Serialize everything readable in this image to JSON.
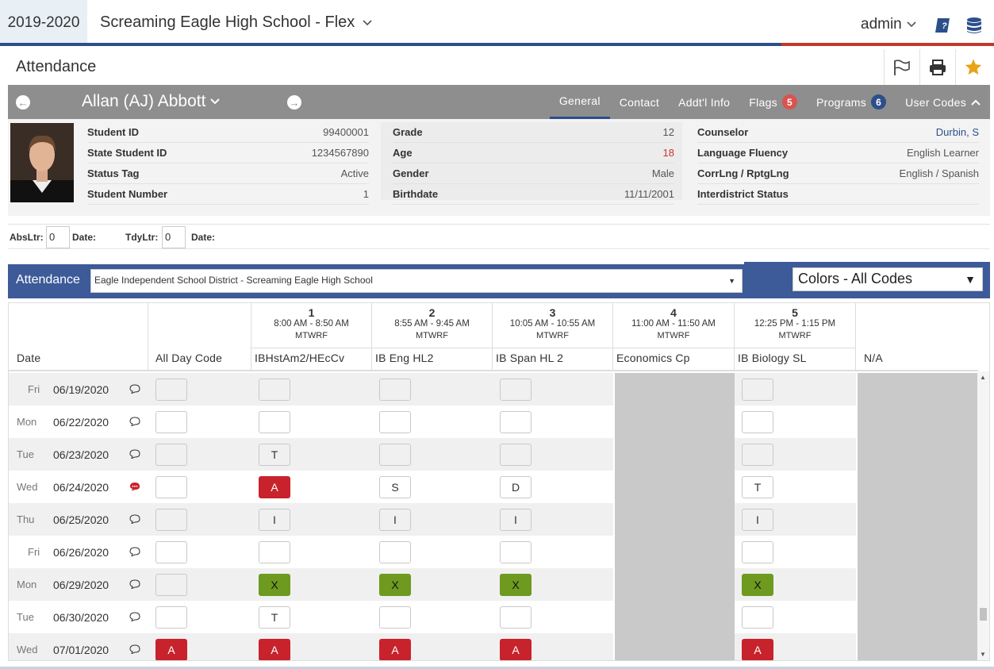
{
  "topbar": {
    "year": "2019-2020",
    "school": "Screaming Eagle High School - Flex",
    "user": "admin",
    "icons": [
      "help-book-icon",
      "database-icon"
    ]
  },
  "page": {
    "title": "Attendance",
    "actions": [
      "flag-icon",
      "print-icon",
      "star-icon"
    ]
  },
  "student": {
    "name": "Allan (AJ) Abbott",
    "tabs": [
      {
        "label": "General",
        "active": true
      },
      {
        "label": "Contact"
      },
      {
        "label": "Addt'l Info"
      },
      {
        "label": "Flags",
        "badge": "5",
        "badge_color": "#d9534f"
      },
      {
        "label": "Programs",
        "badge": "6",
        "badge_color": "#2c4f8c"
      },
      {
        "label": "User Codes"
      }
    ],
    "col1": [
      {
        "k": "Student ID",
        "v": "99400001"
      },
      {
        "k": "State Student ID",
        "v": "1234567890"
      },
      {
        "k": "Status Tag",
        "v": "Active"
      },
      {
        "k": "Student Number",
        "v": "1"
      }
    ],
    "col2": [
      {
        "k": "Grade",
        "v": "12"
      },
      {
        "k": "Age",
        "v": "18"
      },
      {
        "k": "Gender",
        "v": "Male"
      },
      {
        "k": "Birthdate",
        "v": "11/11/2001"
      }
    ],
    "col3": [
      {
        "k": "Counselor",
        "v": "Durbin, S"
      },
      {
        "k": "Language Fluency",
        "v": "English Learner"
      },
      {
        "k": "CorrLng / RptgLng",
        "v": "English / Spanish"
      },
      {
        "k": "Interdistrict Status",
        "v": ""
      }
    ]
  },
  "letters": {
    "abs_label": "AbsLtr:",
    "abs_value": "0",
    "date1_label": "Date:",
    "tdy_label": "TdyLtr:",
    "tdy_value": "0",
    "date2_label": "Date:"
  },
  "attendance": {
    "label": "Attendance",
    "school_select": "Eagle Independent School District - Screaming Eagle High School",
    "colors_select": "Colors - All Codes"
  },
  "grid": {
    "date_header": "Date",
    "allday_header": "All Day Code",
    "periods": [
      {
        "num": "1",
        "time": "8:00 AM - 8:50 AM",
        "days": "MTWRF",
        "course": "IBHstAm2/HEcCv"
      },
      {
        "num": "2",
        "time": "8:55 AM - 9:45 AM",
        "days": "MTWRF",
        "course": "IB Eng HL2"
      },
      {
        "num": "3",
        "time": "10:05 AM - 10:55 AM",
        "days": "MTWRF",
        "course": "IB Span HL 2"
      },
      {
        "num": "4",
        "time": "11:00 AM - 11:50 AM",
        "days": "MTWRF",
        "course": "Economics Cp"
      },
      {
        "num": "5",
        "time": "12:25 PM - 1:15 PM",
        "days": "MTWRF",
        "course": "IB Biology SL"
      },
      {
        "num": "",
        "time": "",
        "days": "",
        "course": "N/A"
      }
    ],
    "rows": [
      {
        "dow": "Fri",
        "date": "06/19/2020",
        "comment": false,
        "allday": "",
        "codes": [
          "",
          "",
          "",
          null,
          "",
          null
        ]
      },
      {
        "dow": "Mon",
        "date": "06/22/2020",
        "comment": false,
        "allday": "",
        "codes": [
          "",
          "",
          "",
          null,
          "",
          null
        ]
      },
      {
        "dow": "Tue",
        "date": "06/23/2020",
        "comment": false,
        "allday": "",
        "codes": [
          "T",
          "",
          "",
          null,
          "",
          null
        ]
      },
      {
        "dow": "Wed",
        "date": "06/24/2020",
        "comment": true,
        "allday": "",
        "codes": [
          "A",
          "S",
          "D",
          null,
          "T",
          null
        ]
      },
      {
        "dow": "Thu",
        "date": "06/25/2020",
        "comment": false,
        "allday": "",
        "codes": [
          "I",
          "I",
          "I",
          null,
          "I",
          null
        ]
      },
      {
        "dow": "Fri",
        "date": "06/26/2020",
        "comment": false,
        "allday": "",
        "codes": [
          "",
          "",
          "",
          null,
          "",
          null
        ]
      },
      {
        "dow": "Mon",
        "date": "06/29/2020",
        "comment": false,
        "allday": "",
        "codes": [
          "X",
          "X",
          "X",
          null,
          "X",
          null
        ]
      },
      {
        "dow": "Tue",
        "date": "06/30/2020",
        "comment": false,
        "allday": "",
        "codes": [
          "T",
          "",
          "",
          null,
          "",
          null
        ]
      },
      {
        "dow": "Wed",
        "date": "07/01/2020",
        "comment": false,
        "allday": "A",
        "codes": [
          "A",
          "A",
          "A",
          null,
          "A",
          null
        ]
      }
    ],
    "code_colors": {
      "A": "red",
      "X": "green"
    }
  }
}
